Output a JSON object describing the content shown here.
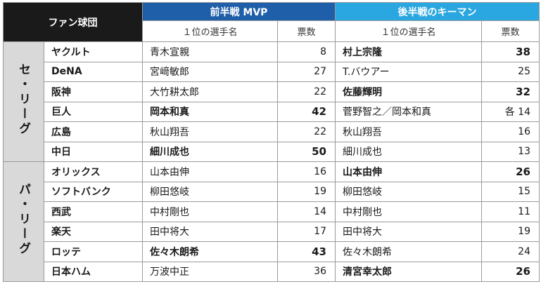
{
  "header": {
    "team_label": "ファン球団",
    "first_half": "前半戦 MVP",
    "second_half": "後半戦のキーマン",
    "player_col": "１位の選手名",
    "votes_col": "票数"
  },
  "leagues": [
    {
      "name": "セ・リーグ",
      "rows": [
        {
          "team": "ヤクルト",
          "mvp": "青木宣親",
          "mvp_votes": "8",
          "mvp_bold": false,
          "key": "村上宗隆",
          "key_votes": "38",
          "key_bold": true
        },
        {
          "team": "DeNA",
          "mvp": "宮﨑敏郎",
          "mvp_votes": "27",
          "mvp_bold": false,
          "key": "T.バウアー",
          "key_votes": "25",
          "key_bold": false
        },
        {
          "team": "阪神",
          "mvp": "大竹耕太郎",
          "mvp_votes": "22",
          "mvp_bold": false,
          "key": "佐藤輝明",
          "key_votes": "32",
          "key_bold": true
        },
        {
          "team": "巨人",
          "mvp": "岡本和真",
          "mvp_votes": "42",
          "mvp_bold": true,
          "key": "菅野智之／岡本和真",
          "key_votes": "各 14",
          "key_bold": false
        },
        {
          "team": "広島",
          "mvp": "秋山翔吾",
          "mvp_votes": "22",
          "mvp_bold": false,
          "key": "秋山翔吾",
          "key_votes": "16",
          "key_bold": false
        },
        {
          "team": "中日",
          "mvp": "細川成也",
          "mvp_votes": "50",
          "mvp_bold": true,
          "key": "細川成也",
          "key_votes": "13",
          "key_bold": false
        }
      ]
    },
    {
      "name": "パ・リーグ",
      "rows": [
        {
          "team": "オリックス",
          "mvp": "山本由伸",
          "mvp_votes": "16",
          "mvp_bold": false,
          "key": "山本由伸",
          "key_votes": "26",
          "key_bold": true
        },
        {
          "team": "ソフトバンク",
          "mvp": "柳田悠岐",
          "mvp_votes": "19",
          "mvp_bold": false,
          "key": "柳田悠岐",
          "key_votes": "15",
          "key_bold": false
        },
        {
          "team": "西武",
          "mvp": "中村剛也",
          "mvp_votes": "14",
          "mvp_bold": false,
          "key": "中村剛也",
          "key_votes": "11",
          "key_bold": false
        },
        {
          "team": "楽天",
          "mvp": "田中将大",
          "mvp_votes": "17",
          "mvp_bold": false,
          "key": "田中将大",
          "key_votes": "19",
          "key_bold": false
        },
        {
          "team": "ロッテ",
          "mvp": "佐々木朗希",
          "mvp_votes": "43",
          "mvp_bold": true,
          "key": "佐々木朗希",
          "key_votes": "24",
          "key_bold": false
        },
        {
          "team": "日本ハム",
          "mvp": "万波中正",
          "mvp_votes": "36",
          "mvp_bold": false,
          "key": "清宮幸太郎",
          "key_votes": "26",
          "key_bold": true
        }
      ]
    }
  ],
  "colors": {
    "team_header_bg": "#1a1a1a",
    "first_half_header_bg": "#1f5ea8",
    "second_half_header_bg": "#2aa7e0",
    "league_cell_bg": "#d9d9d9"
  }
}
